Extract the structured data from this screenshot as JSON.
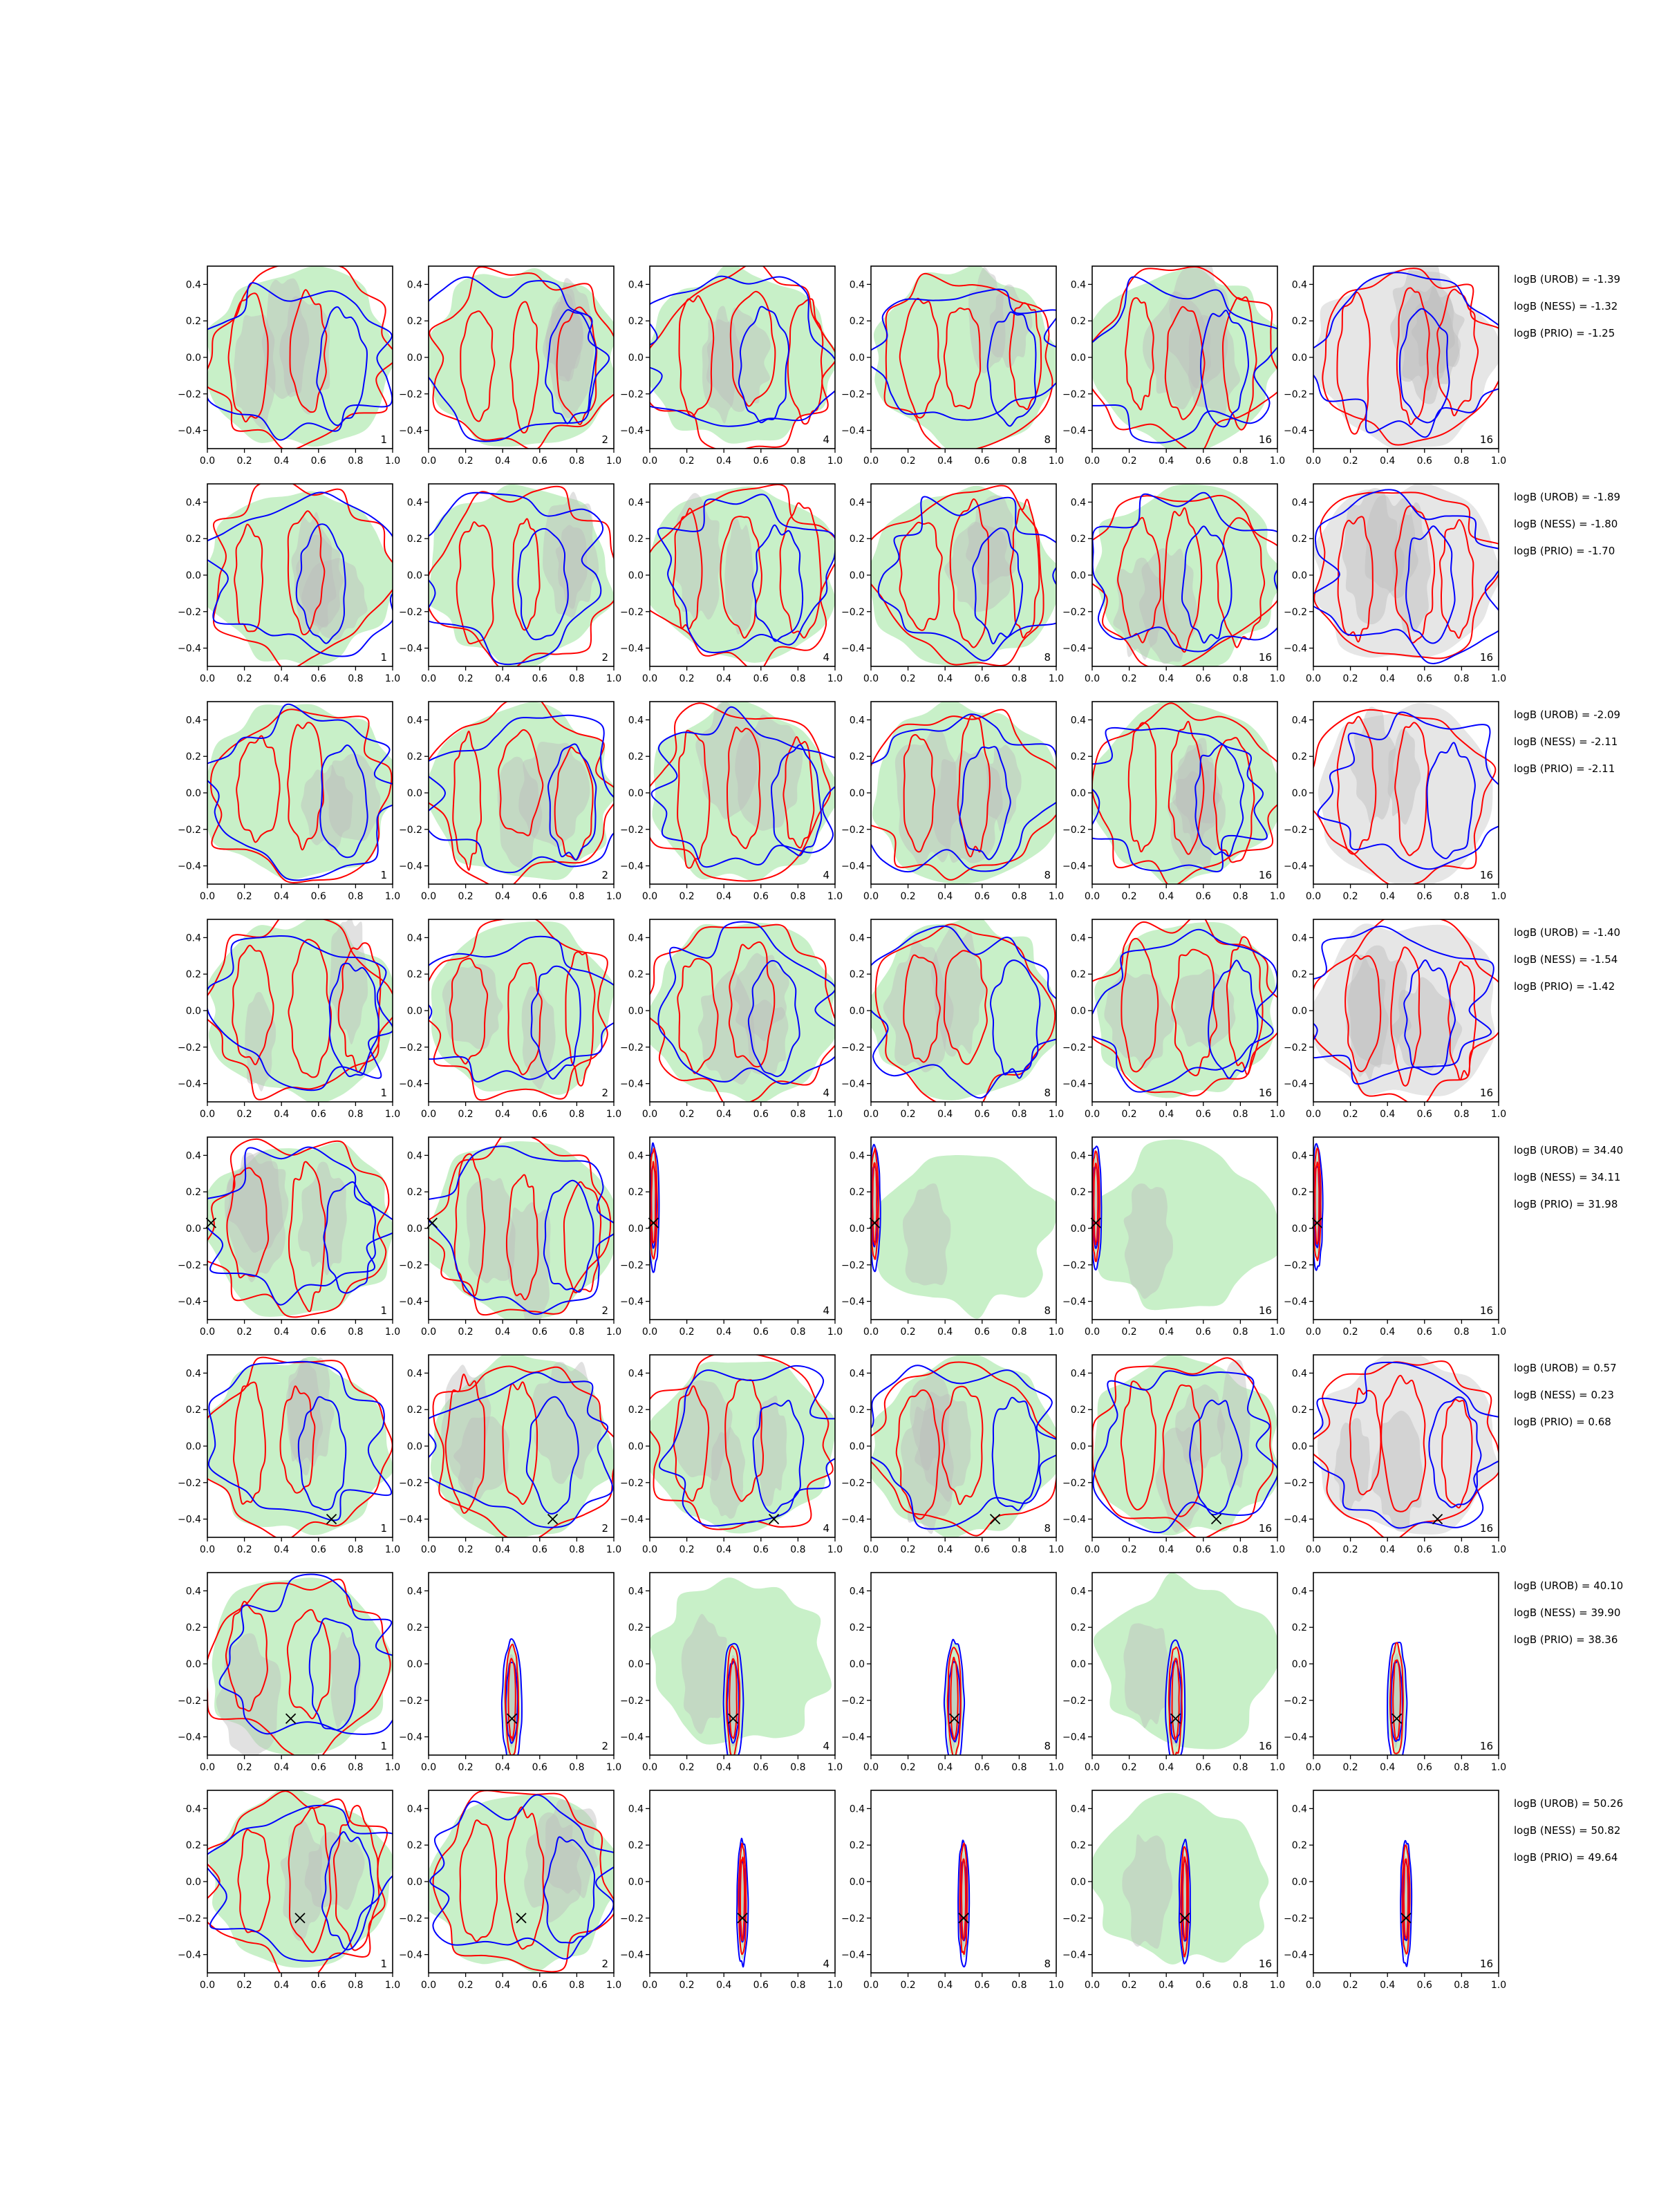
{
  "colors": {
    "blue": "#0000ff",
    "red": "#ff0000",
    "green_fill": "#c8f0c8",
    "gray_fill": "#bdbdbd",
    "light_gray_fill": "#e6e6e6",
    "marker": "#000000"
  },
  "chart_data": {
    "type": "contour-grid",
    "rows": 8,
    "cols": 6,
    "xlim": [
      0.0,
      1.0
    ],
    "ylim": [
      -0.5,
      0.5
    ],
    "x_ticks": [
      "0.0",
      "0.2",
      "0.4",
      "0.6",
      "0.8",
      "1.0"
    ],
    "y_ticks": [
      "0.4",
      "0.2",
      "0.0",
      "−0.2",
      "−0.4"
    ],
    "panel_labels": [
      "1",
      "2",
      "4",
      "8",
      "16",
      "16"
    ],
    "grid": false,
    "row_annotations": [
      {
        "urob": "logB (UROB) = -1.39",
        "ness": "logB (NESS) = -1.32",
        "prio": "logB (PRIO) = -1.25"
      },
      {
        "urob": "logB (UROB) = -1.89",
        "ness": "logB (NESS) = -1.80",
        "prio": "logB (PRIO) = -1.70"
      },
      {
        "urob": "logB (UROB) = -2.09",
        "ness": "logB (NESS) = -2.11",
        "prio": "logB (PRIO) = -2.11"
      },
      {
        "urob": "logB (UROB) = -1.40",
        "ness": "logB (NESS) = -1.54",
        "prio": "logB (PRIO) = -1.42"
      },
      {
        "urob": "logB (UROB) = 34.40",
        "ness": "logB (NESS) = 34.11",
        "prio": "logB (PRIO) = 31.98"
      },
      {
        "urob": "logB (UROB) = 0.57",
        "ness": "logB (NESS) = 0.23",
        "prio": "logB (PRIO) = 0.68"
      },
      {
        "urob": "logB (UROB) = 40.10",
        "ness": "logB (NESS) = 39.90",
        "prio": "logB (PRIO) = 38.36"
      },
      {
        "urob": "logB (UROB) = 50.26",
        "ness": "logB (NESS) = 50.82",
        "prio": "logB (PRIO) = 49.64"
      }
    ],
    "true_parameters": [
      null,
      null,
      null,
      null,
      {
        "x": 0.02,
        "y": 0.03
      },
      {
        "x": 0.67,
        "y": -0.4
      },
      {
        "x": 0.45,
        "y": -0.3
      },
      {
        "x": 0.5,
        "y": -0.2
      }
    ],
    "concentrated_rows": {
      "4": {
        "from_col": 2,
        "width": 0.02,
        "width_fill_col3": 0.45,
        "wide_fill_cols": [
          3,
          4
        ]
      },
      "6": {
        "from_col": 1,
        "width": 0.035,
        "wide_fill_cols": [
          2,
          4
        ]
      },
      "7": {
        "from_col": 2,
        "width": 0.02,
        "wide_fill_cols": [
          4
        ]
      }
    }
  }
}
